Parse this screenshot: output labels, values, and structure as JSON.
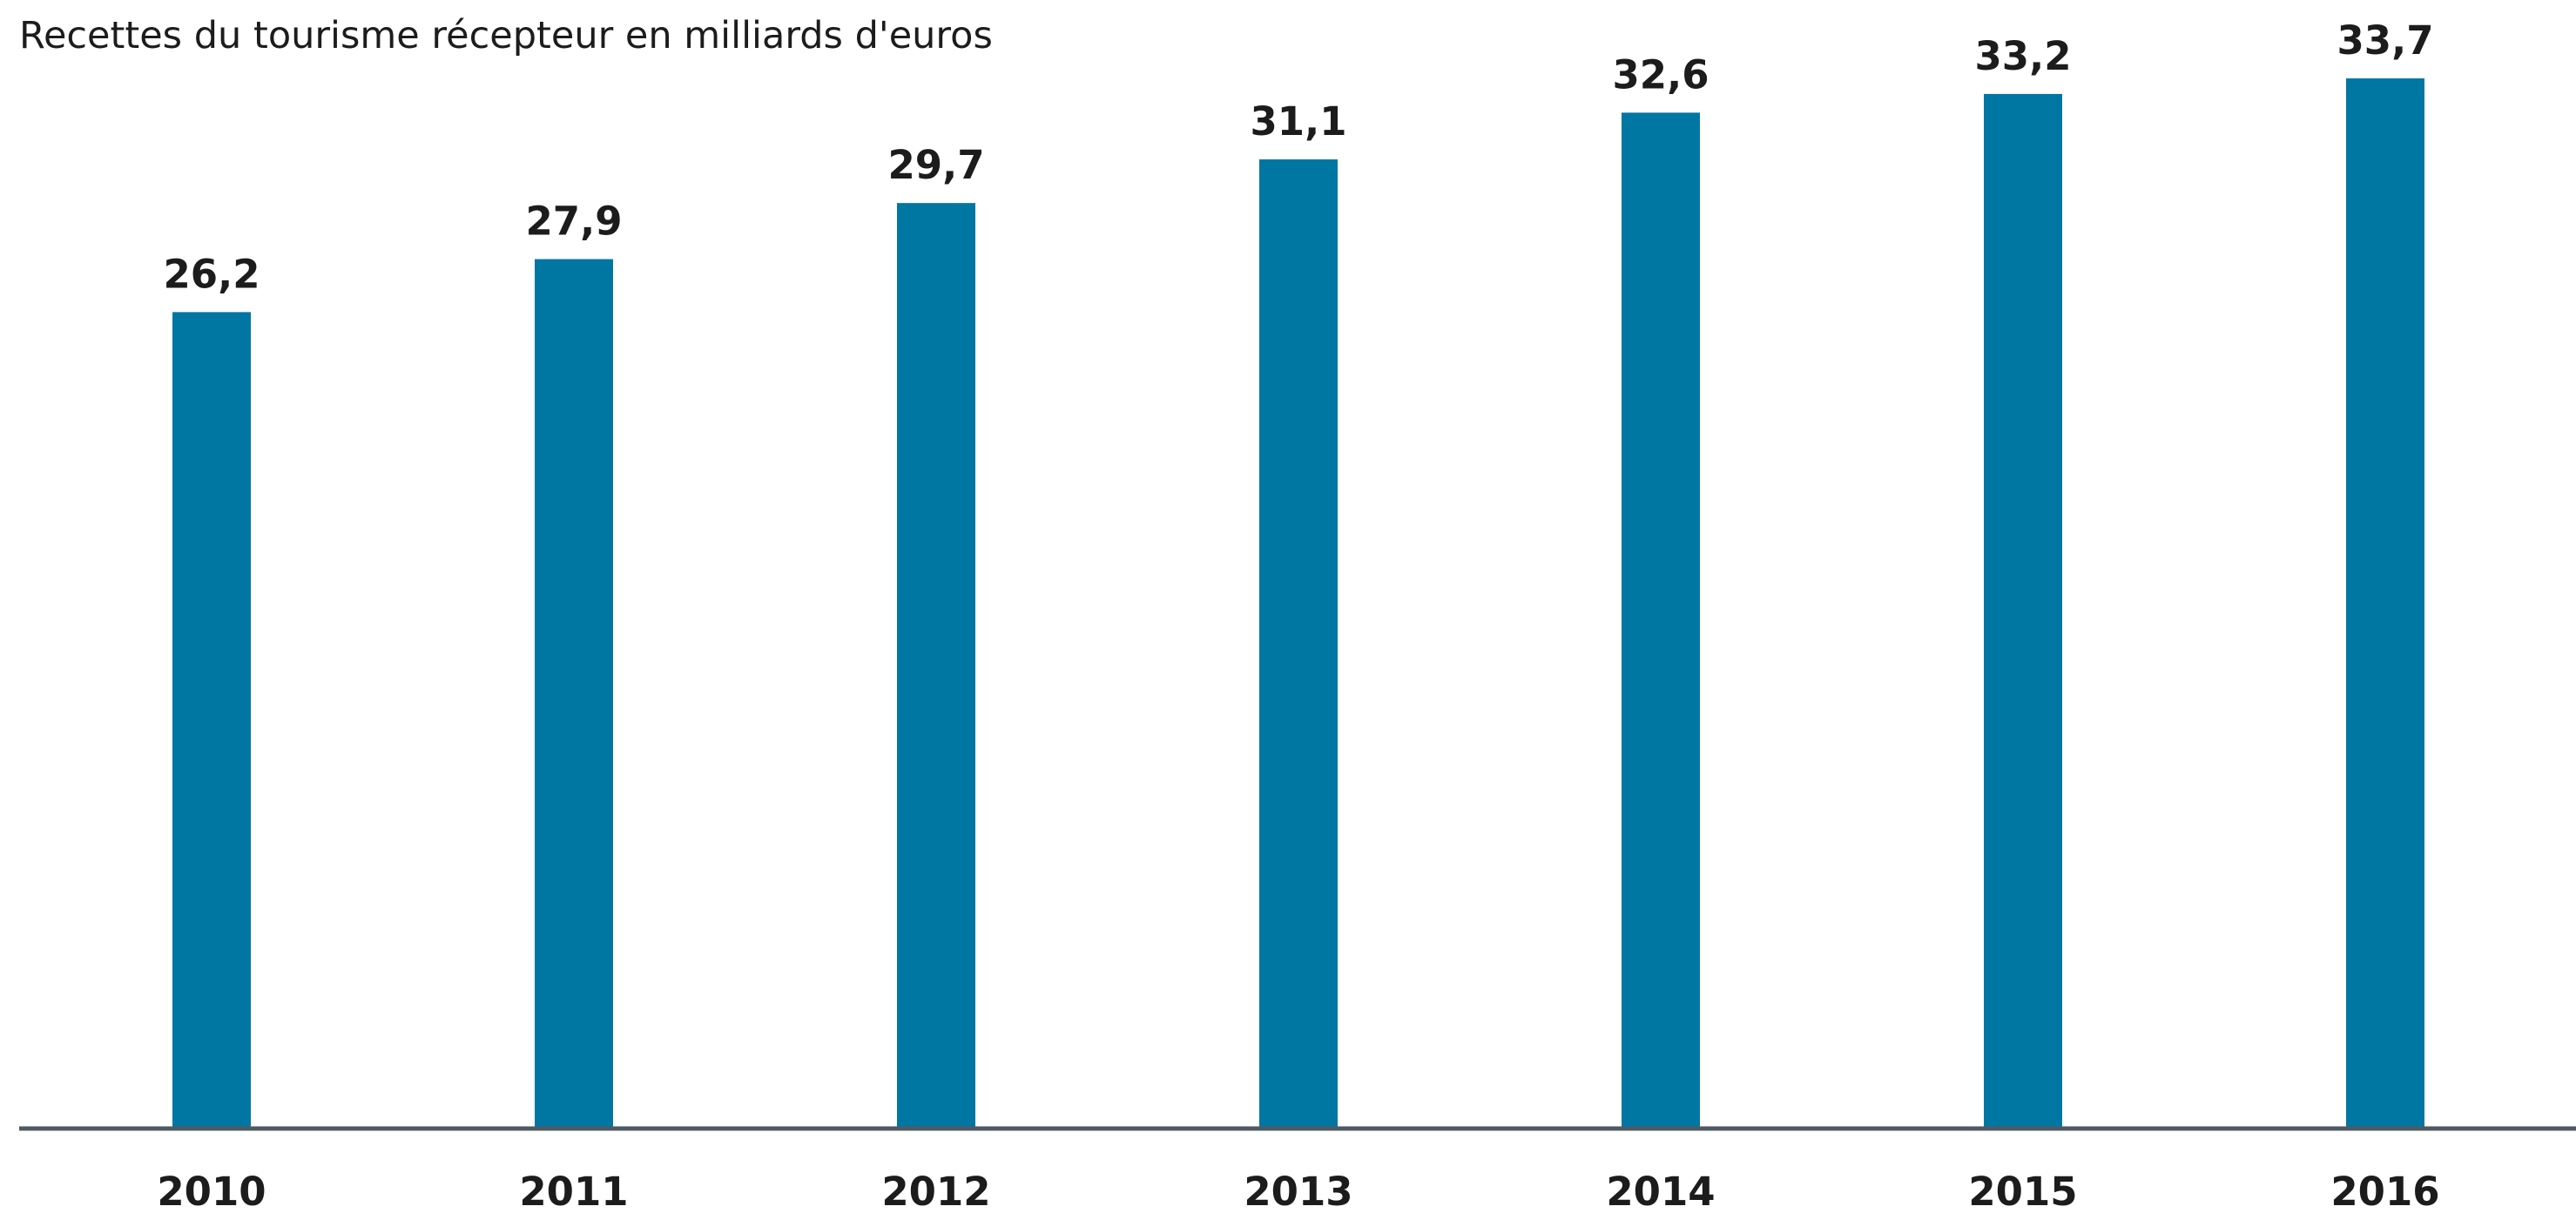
{
  "chart_data": {
    "type": "bar",
    "title": "Recettes du tourisme récepteur en milliards d'euros",
    "categories": [
      "2010",
      "2011",
      "2012",
      "2013",
      "2014",
      "2015",
      "2016"
    ],
    "values": [
      26.2,
      27.9,
      29.7,
      31.1,
      32.6,
      33.2,
      33.7
    ],
    "value_labels": [
      "26,2",
      "27,9",
      "29,7",
      "31,1",
      "32,6",
      "33,2",
      "33,7"
    ],
    "xlabel": "",
    "ylabel": "",
    "ylim": [
      0,
      33.7
    ],
    "grid": false,
    "legend": "none",
    "colors": {
      "bar": "#0077a3",
      "baseline": "#4f5b63",
      "text": "#1c1c1c"
    }
  }
}
